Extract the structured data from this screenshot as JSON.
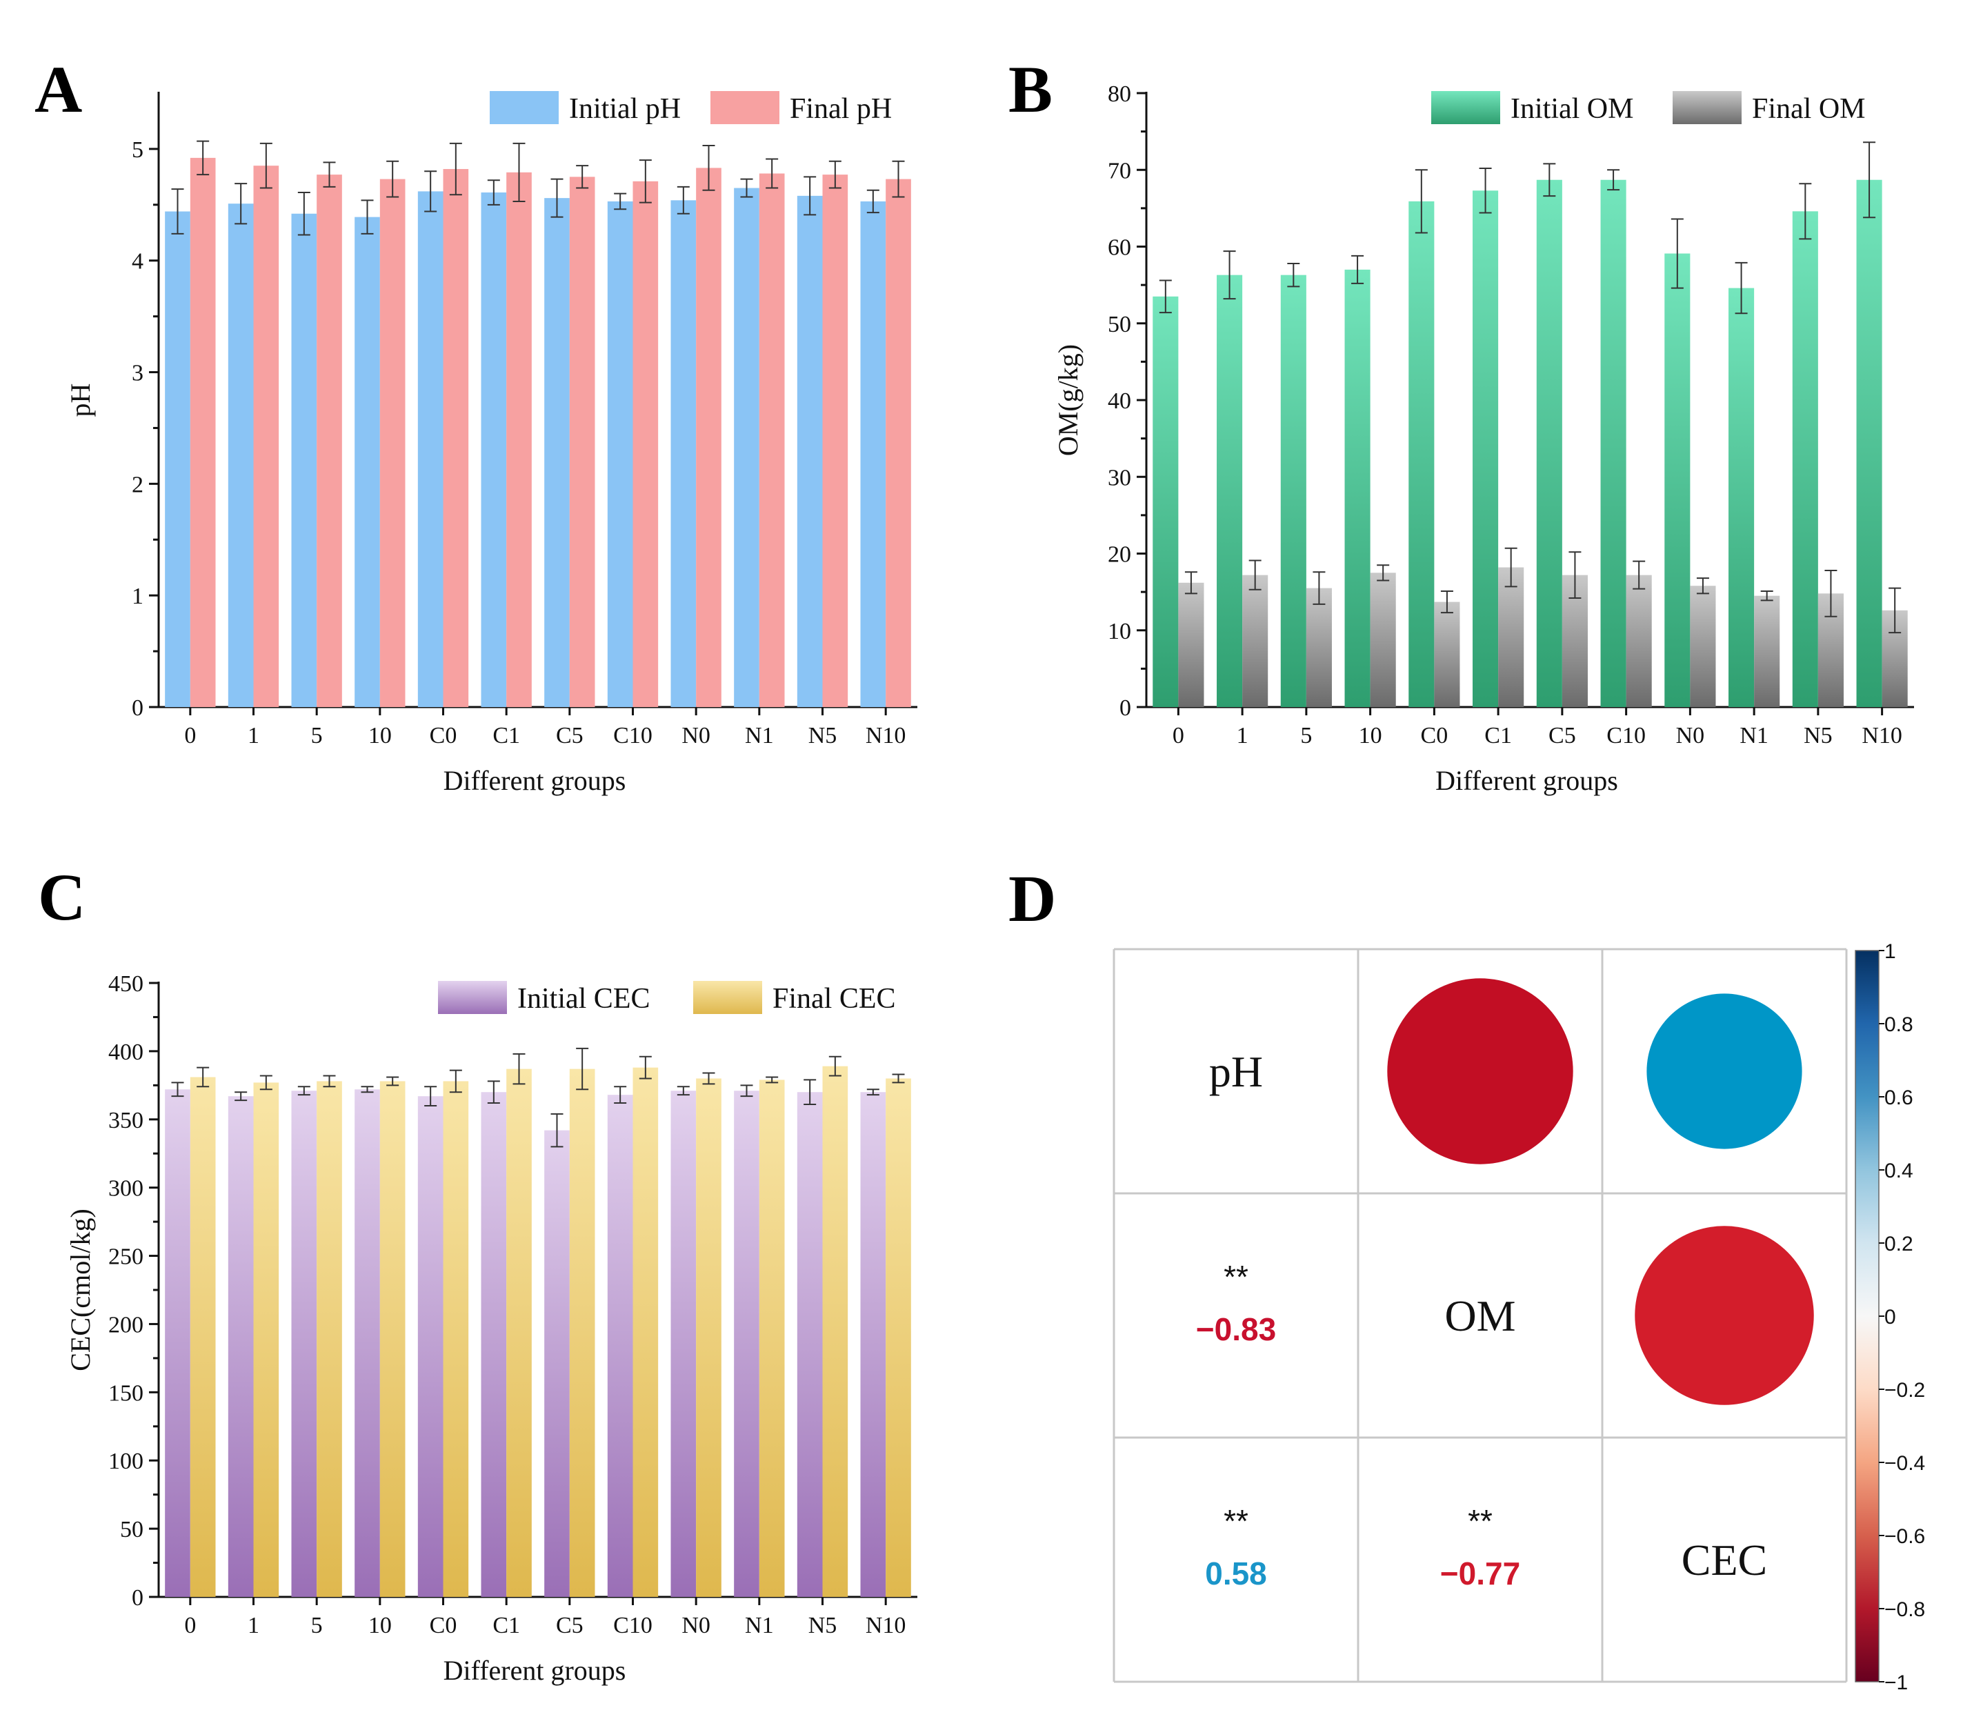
{
  "panels": {
    "A": {
      "letter": "A",
      "chart_data": {
        "type": "bar",
        "categories": [
          "0",
          "1",
          "5",
          "10",
          "C0",
          "C1",
          "C5",
          "C10",
          "N0",
          "N1",
          "N5",
          "N10"
        ],
        "series": [
          {
            "name": "Initial pH",
            "values": [
              4.44,
              4.51,
              4.42,
              4.39,
              4.62,
              4.61,
              4.56,
              4.53,
              4.54,
              4.65,
              4.58,
              4.53
            ],
            "errors": [
              0.2,
              0.18,
              0.19,
              0.15,
              0.18,
              0.11,
              0.17,
              0.07,
              0.12,
              0.08,
              0.17,
              0.1
            ],
            "color_top": "#8ac4f5",
            "color_bottom": "#8ac4f5"
          },
          {
            "name": "Final pH",
            "values": [
              4.92,
              4.85,
              4.77,
              4.73,
              4.82,
              4.79,
              4.75,
              4.71,
              4.83,
              4.78,
              4.77,
              4.73
            ],
            "errors": [
              0.15,
              0.2,
              0.11,
              0.16,
              0.23,
              0.26,
              0.1,
              0.19,
              0.2,
              0.13,
              0.12,
              0.16
            ],
            "color_top": "#f7a1a1",
            "color_bottom": "#f7a1a1"
          }
        ],
        "title": "",
        "xlabel": "Different groups",
        "ylabel": "pH",
        "ylim": [
          0,
          5.5
        ],
        "yticks": [
          0,
          1,
          2,
          3,
          4,
          5
        ],
        "legend_position": "top-right"
      }
    },
    "B": {
      "letter": "B",
      "chart_data": {
        "type": "bar",
        "categories": [
          "0",
          "1",
          "5",
          "10",
          "C0",
          "C1",
          "C5",
          "C10",
          "N0",
          "N1",
          "N5",
          "N10"
        ],
        "series": [
          {
            "name": "Initial OM",
            "values": [
              53.5,
              56.3,
              56.3,
              57.0,
              65.9,
              67.3,
              68.7,
              68.7,
              59.1,
              54.6,
              64.6,
              68.7
            ],
            "errors": [
              2.1,
              3.1,
              1.5,
              1.8,
              4.1,
              2.9,
              2.1,
              1.3,
              4.5,
              3.3,
              3.6,
              4.9
            ],
            "color_top": "#74e6bd",
            "color_bottom": "#2e9e6f"
          },
          {
            "name": "Final OM",
            "values": [
              16.2,
              17.2,
              15.5,
              17.5,
              13.7,
              18.2,
              17.2,
              17.2,
              15.8,
              14.5,
              14.8,
              12.6
            ],
            "errors": [
              1.4,
              1.9,
              2.1,
              1.0,
              1.4,
              2.5,
              3.0,
              1.8,
              1.0,
              0.6,
              3.0,
              2.9
            ],
            "color_top": "#c9c9c9",
            "color_bottom": "#6b6b6b"
          }
        ],
        "title": "",
        "xlabel": "Different groups",
        "ylabel": "OM(g/kg)",
        "ylim": [
          0,
          80
        ],
        "yticks": [
          0,
          10,
          20,
          30,
          40,
          50,
          60,
          70,
          80
        ],
        "legend_position": "top-right"
      }
    },
    "C": {
      "letter": "C",
      "chart_data": {
        "type": "bar",
        "categories": [
          "0",
          "1",
          "5",
          "10",
          "C0",
          "C1",
          "C5",
          "C10",
          "N0",
          "N1",
          "N5",
          "N10"
        ],
        "series": [
          {
            "name": "Initial CEC",
            "values": [
              372,
              367,
              371,
              372,
              367,
              370,
              342,
              368,
              371,
              371,
              370,
              370
            ],
            "errors": [
              5,
              3,
              3,
              2,
              7,
              8,
              12,
              6,
              3,
              4,
              9,
              2
            ],
            "color_top": "#e3d2ee",
            "color_bottom": "#9a6fb6"
          },
          {
            "name": "Final CEC",
            "values": [
              381,
              377,
              378,
              378,
              378,
              387,
              387,
              388,
              380,
              379,
              389,
              380
            ],
            "errors": [
              7,
              5,
              4,
              3,
              8,
              11,
              15,
              8,
              4,
              2,
              7,
              3
            ],
            "color_top": "#f9e6a8",
            "color_bottom": "#dfb84e"
          }
        ],
        "title": "",
        "xlabel": "Different groups",
        "ylabel": "CEC(cmol/kg)",
        "ylim": [
          0,
          450
        ],
        "yticks": [
          0,
          50,
          100,
          150,
          200,
          250,
          300,
          350,
          400,
          450
        ],
        "legend_position": "top-right"
      }
    },
    "D": {
      "letter": "D",
      "chart_data": {
        "type": "heatmap",
        "variables": [
          "pH",
          "OM",
          "CEC"
        ],
        "correlations": [
          {
            "row": 1,
            "col": 0,
            "value": -0.83,
            "label": "−0.83",
            "significance": "**",
            "color": "#c8102e"
          },
          {
            "row": 2,
            "col": 0,
            "value": 0.58,
            "label": "0.58",
            "significance": "**",
            "color": "#1a95c9"
          },
          {
            "row": 2,
            "col": 1,
            "value": -0.77,
            "label": "−0.77",
            "significance": "**",
            "color": "#d0192c"
          }
        ],
        "circles": [
          {
            "row": 0,
            "col": 1,
            "value": -0.83,
            "color": "#c20e24"
          },
          {
            "row": 0,
            "col": 2,
            "value": 0.58,
            "color": "#0096c7"
          },
          {
            "row": 1,
            "col": 2,
            "value": -0.77,
            "color": "#d31d2b"
          }
        ],
        "colorbar": {
          "range": [
            -1,
            1
          ],
          "ticks": [
            "1",
            "0.8",
            "0.6",
            "0.4",
            "0.2",
            "0",
            "−0.2",
            "−0.4",
            "−0.6",
            "−0.8",
            "−1"
          ],
          "colors": [
            "#053061",
            "#2166ac",
            "#4393c3",
            "#92c5de",
            "#d1e5f0",
            "#f7f7f7",
            "#fddbc7",
            "#f4a582",
            "#d6604d",
            "#b2182b",
            "#67001f"
          ]
        }
      }
    }
  }
}
